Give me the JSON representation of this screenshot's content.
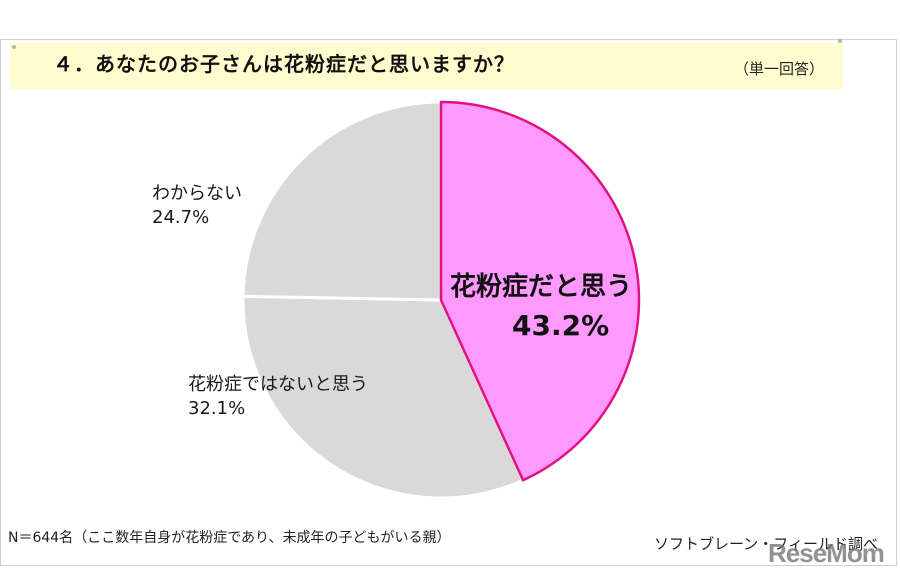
{
  "header": {
    "title": "４．あなたのお子さんは花粉症だと思いますか？",
    "answer_type": "（単一回答）"
  },
  "footer": {
    "sample_note": "N＝644名（ここ数年自身が花粉症であり、未成年の子どもがいる親）",
    "source": "ソフトブレーン・フィールド調べ",
    "watermark": "ReseMom"
  },
  "colors": {
    "highlight_fill": "#FF99FF",
    "highlight_stroke": "#E0137E",
    "other_fill": "#D9D9D9",
    "title_band": "#FFFDD0"
  },
  "labels": {
    "yes": {
      "name": "花粉症だと思う",
      "value": "43.2%"
    },
    "no": {
      "name": "花粉症ではないと思う",
      "value": "32.1%"
    },
    "unknown": {
      "name": "わからない",
      "value": "24.7%"
    }
  },
  "chart_data": {
    "type": "pie",
    "title": "４．あなたのお子さんは花粉症だと思いますか？",
    "subtitle": "（単一回答）",
    "categories": [
      "花粉症だと思う",
      "花粉症ではないと思う",
      "わからない"
    ],
    "values": [
      43.2,
      32.1,
      24.7
    ],
    "unit": "%",
    "start_angle": "12 o'clock",
    "direction": "clockwise",
    "highlighted": "花粉症だと思う",
    "colors": [
      "#FF99FF",
      "#D9D9D9",
      "#D9D9D9"
    ],
    "annotations": [
      "N＝644名（ここ数年自身が花粉症であり、未成年の子どもがいる親）",
      "ソフトブレーン・フィールド調べ"
    ],
    "legend": "none (direct labels)"
  }
}
